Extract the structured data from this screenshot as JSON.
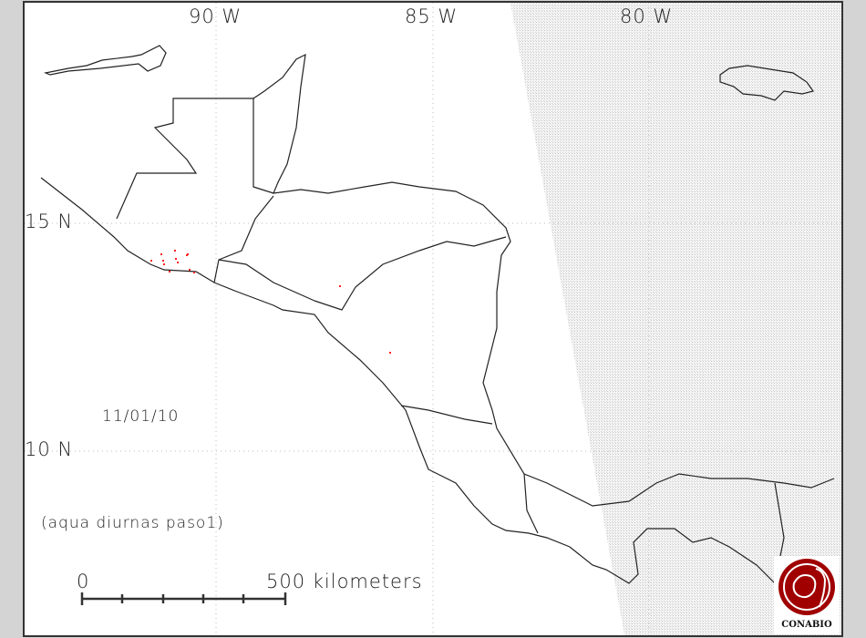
{
  "map": {
    "longitude_labels": [
      "90 W",
      "85 W",
      "80 W"
    ],
    "latitude_labels": [
      "15 N",
      "10 N"
    ],
    "date": "11/01/10",
    "caption": "(aqua diurnas paso1)",
    "scale_bar": {
      "start_label": "0",
      "end_label": "500 kilometers"
    },
    "logo": {
      "text": "CONABIO",
      "color": "#a00000"
    },
    "colors": {
      "background": "#d4d4d4",
      "land_outline": "#222222",
      "hotspot": "#ff2020",
      "no_coverage_hatch": "#cccccc"
    },
    "hotspot_count": 14
  }
}
